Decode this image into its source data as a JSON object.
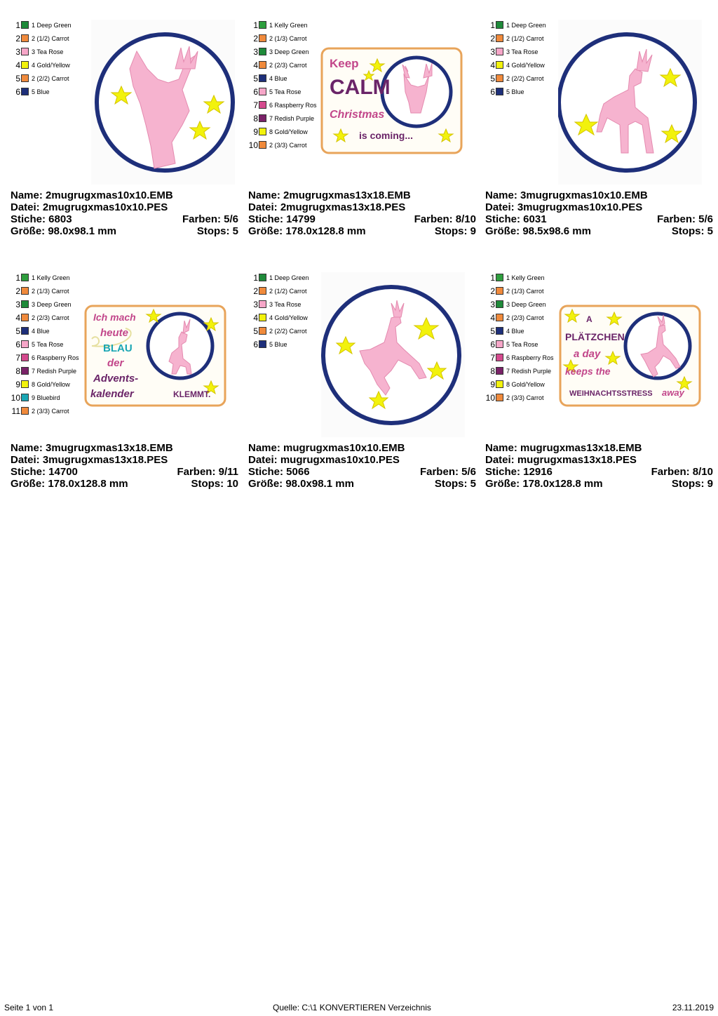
{
  "designs": [
    {
      "colors": [
        {
          "num": "1",
          "name": "1 Deep Green",
          "hex": "#1f8a3a"
        },
        {
          "num": "2",
          "name": "2 (1/2) Carrot",
          "hex": "#f08a3c"
        },
        {
          "num": "3",
          "name": "3 Tea Rose",
          "hex": "#f6a6c8"
        },
        {
          "num": "4",
          "name": "4 Gold/Yellow",
          "hex": "#f2f20c"
        },
        {
          "num": "5",
          "name": "2 (2/2) Carrot",
          "hex": "#f08a3c"
        },
        {
          "num": "6",
          "name": "5 Blue",
          "hex": "#1e2f7a"
        }
      ],
      "name_label": "Name: 2mugrugxmas10x10.EMB",
      "datei_label": "Datei: 2mugrugxmas10x10.PES",
      "stiche_label": "Stiche: 6803",
      "farben_label": "Farben: 5/6",
      "groesse_label": "Größe: 98.0x98.1 mm",
      "stops_label": "Stops: 5"
    },
    {
      "colors": [
        {
          "num": "1",
          "name": "1 Kelly Green",
          "hex": "#2e9e3e"
        },
        {
          "num": "2",
          "name": "2 (1/3) Carrot",
          "hex": "#f08a3c"
        },
        {
          "num": "3",
          "name": "3 Deep Green",
          "hex": "#1f8a3a"
        },
        {
          "num": "4",
          "name": "2 (2/3) Carrot",
          "hex": "#f08a3c"
        },
        {
          "num": "5",
          "name": "4 Blue",
          "hex": "#1e2f7a"
        },
        {
          "num": "6",
          "name": "5 Tea Rose",
          "hex": "#f6a6c8"
        },
        {
          "num": "7",
          "name": "6 Raspberry Ros",
          "hex": "#d44a8e"
        },
        {
          "num": "8",
          "name": "7 Redish Purple",
          "hex": "#7a2268"
        },
        {
          "num": "9",
          "name": "8 Gold/Yellow",
          "hex": "#f2f20c"
        },
        {
          "num": "10",
          "name": "2 (3/3) Carrot",
          "hex": "#f08a3c"
        }
      ],
      "name_label": "Name: 2mugrugxmas13x18.EMB",
      "datei_label": "Datei: 2mugrugxmas13x18.PES",
      "stiche_label": "Stiche: 14799",
      "farben_label": "Farben: 8/10",
      "groesse_label": "Größe: 178.0x128.8 mm",
      "stops_label": "Stops: 9",
      "art_text": [
        "Keep",
        "CALM",
        "Christmas",
        "is coming..."
      ]
    },
    {
      "colors": [
        {
          "num": "1",
          "name": "1 Deep Green",
          "hex": "#1f8a3a"
        },
        {
          "num": "2",
          "name": "2 (1/2) Carrot",
          "hex": "#f08a3c"
        },
        {
          "num": "3",
          "name": "3 Tea Rose",
          "hex": "#f6a6c8"
        },
        {
          "num": "4",
          "name": "4 Gold/Yellow",
          "hex": "#f2f20c"
        },
        {
          "num": "5",
          "name": "2 (2/2) Carrot",
          "hex": "#f08a3c"
        },
        {
          "num": "6",
          "name": "5 Blue",
          "hex": "#1e2f7a"
        }
      ],
      "name_label": "Name: 3mugrugxmas10x10.EMB",
      "datei_label": "Datei: 3mugrugxmas10x10.PES",
      "stiche_label": "Stiche: 6031",
      "farben_label": "Farben: 5/6",
      "groesse_label": "Größe: 98.5x98.6 mm",
      "stops_label": "Stops: 5"
    },
    {
      "colors": [
        {
          "num": "1",
          "name": "1 Kelly Green",
          "hex": "#2e9e3e"
        },
        {
          "num": "2",
          "name": "2 (1/3) Carrot",
          "hex": "#f08a3c"
        },
        {
          "num": "3",
          "name": "3 Deep Green",
          "hex": "#1f8a3a"
        },
        {
          "num": "4",
          "name": "2 (2/3) Carrot",
          "hex": "#f08a3c"
        },
        {
          "num": "5",
          "name": "4 Blue",
          "hex": "#1e2f7a"
        },
        {
          "num": "6",
          "name": "5 Tea Rose",
          "hex": "#f6a6c8"
        },
        {
          "num": "7",
          "name": "6 Raspberry Ros",
          "hex": "#d44a8e"
        },
        {
          "num": "8",
          "name": "7 Redish Purple",
          "hex": "#7a2268"
        },
        {
          "num": "9",
          "name": "8 Gold/Yellow",
          "hex": "#f2f20c"
        },
        {
          "num": "10",
          "name": "9 Bluebird",
          "hex": "#1aa6b4"
        },
        {
          "num": "11",
          "name": "2 (3/3) Carrot",
          "hex": "#f08a3c"
        }
      ],
      "name_label": "Name: 3mugrugxmas13x18.EMB",
      "datei_label": "Datei: 3mugrugxmas13x18.PES",
      "stiche_label": "Stiche: 14700",
      "farben_label": "Farben: 9/11",
      "groesse_label": "Größe: 178.0x128.8 mm",
      "stops_label": "Stops: 10",
      "art_text": [
        "Ich mach",
        "heute",
        "BLAU",
        "der",
        "Advents-",
        "kalender",
        "KLEMMT."
      ]
    },
    {
      "colors": [
        {
          "num": "1",
          "name": "1 Deep Green",
          "hex": "#1f8a3a"
        },
        {
          "num": "2",
          "name": "2 (1/2) Carrot",
          "hex": "#f08a3c"
        },
        {
          "num": "3",
          "name": "3 Tea Rose",
          "hex": "#f6a6c8"
        },
        {
          "num": "4",
          "name": "4 Gold/Yellow",
          "hex": "#f2f20c"
        },
        {
          "num": "5",
          "name": "2 (2/2) Carrot",
          "hex": "#f08a3c"
        },
        {
          "num": "6",
          "name": "5 Blue",
          "hex": "#1e2f7a"
        }
      ],
      "name_label": "Name: mugrugxmas10x10.EMB",
      "datei_label": "Datei: mugrugxmas10x10.PES",
      "stiche_label": "Stiche: 5066",
      "farben_label": "Farben: 5/6",
      "groesse_label": "Größe: 98.0x98.1 mm",
      "stops_label": "Stops: 5"
    },
    {
      "colors": [
        {
          "num": "1",
          "name": "1 Kelly Green",
          "hex": "#2e9e3e"
        },
        {
          "num": "2",
          "name": "2 (1/3) Carrot",
          "hex": "#f08a3c"
        },
        {
          "num": "3",
          "name": "3 Deep Green",
          "hex": "#1f8a3a"
        },
        {
          "num": "4",
          "name": "2 (2/3) Carrot",
          "hex": "#f08a3c"
        },
        {
          "num": "5",
          "name": "4 Blue",
          "hex": "#1e2f7a"
        },
        {
          "num": "6",
          "name": "5 Tea Rose",
          "hex": "#f6a6c8"
        },
        {
          "num": "7",
          "name": "6 Raspberry Ros",
          "hex": "#d44a8e"
        },
        {
          "num": "8",
          "name": "7 Redish Purple",
          "hex": "#7a2268"
        },
        {
          "num": "9",
          "name": "8 Gold/Yellow",
          "hex": "#f2f20c"
        },
        {
          "num": "10",
          "name": "2 (3/3) Carrot",
          "hex": "#f08a3c"
        }
      ],
      "name_label": "Name: mugrugxmas13x18.EMB",
      "datei_label": "Datei: mugrugxmas13x18.PES",
      "stiche_label": "Stiche: 12916",
      "farben_label": "Farben: 8/10",
      "groesse_label": "Größe: 178.0x128.8 mm",
      "stops_label": "Stops: 9",
      "art_text": [
        "A",
        "PLÄTZCHEN",
        "a day",
        "keeps the",
        "WEIHNACHTSSTRESS",
        "away"
      ]
    }
  ],
  "footer": {
    "page": "Seite 1 von 1",
    "source": "Quelle: C:\\1 KONVERTIEREN Verzeichnis",
    "date": "23.11.2019"
  }
}
